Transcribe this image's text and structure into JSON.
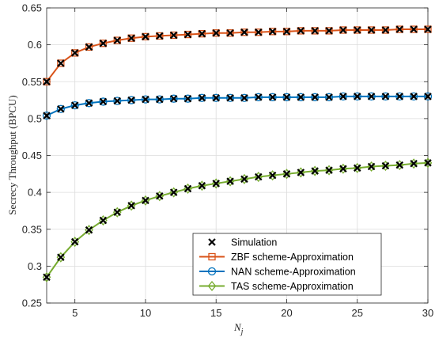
{
  "chart_data": {
    "type": "line",
    "xlabel": "N",
    "xlabel_sub": "j",
    "ylabel": "Secrecy Throughput (BPCU)",
    "xlim": [
      3,
      30
    ],
    "ylim": [
      0.25,
      0.65
    ],
    "xticks": [
      5,
      10,
      15,
      20,
      25,
      30
    ],
    "yticks": [
      0.25,
      0.3,
      0.35,
      0.4,
      0.45,
      0.5,
      0.55,
      0.6,
      0.65
    ],
    "xtick_labels": [
      "5",
      "10",
      "15",
      "20",
      "25",
      "30"
    ],
    "ytick_labels": [
      "0.25",
      "0.3",
      "0.35",
      "0.4",
      "0.45",
      "0.5",
      "0.55",
      "0.6",
      "0.65"
    ],
    "grid": true,
    "legend_position": "bottom-right",
    "x": [
      3,
      4,
      5,
      6,
      7,
      8,
      9,
      10,
      11,
      12,
      13,
      14,
      15,
      16,
      17,
      18,
      19,
      20,
      21,
      22,
      23,
      24,
      25,
      26,
      27,
      28,
      29,
      30
    ],
    "series": [
      {
        "name": "ZBF scheme-Approximation",
        "color": "#D95319",
        "marker": "square",
        "values": [
          0.55,
          0.575,
          0.589,
          0.597,
          0.602,
          0.606,
          0.609,
          0.611,
          0.612,
          0.613,
          0.614,
          0.615,
          0.616,
          0.616,
          0.617,
          0.617,
          0.618,
          0.618,
          0.619,
          0.619,
          0.619,
          0.62,
          0.62,
          0.62,
          0.62,
          0.621,
          0.621,
          0.621
        ]
      },
      {
        "name": "NAN scheme-Approximation",
        "color": "#0072BD",
        "marker": "circle",
        "values": [
          0.504,
          0.513,
          0.518,
          0.521,
          0.523,
          0.524,
          0.525,
          0.526,
          0.526,
          0.527,
          0.527,
          0.528,
          0.528,
          0.528,
          0.528,
          0.529,
          0.529,
          0.529,
          0.529,
          0.529,
          0.529,
          0.53,
          0.53,
          0.53,
          0.53,
          0.53,
          0.53,
          0.53
        ]
      },
      {
        "name": "TAS scheme-Approximation",
        "color": "#77AC30",
        "marker": "diamond",
        "values": [
          0.285,
          0.312,
          0.333,
          0.349,
          0.362,
          0.373,
          0.382,
          0.389,
          0.395,
          0.4,
          0.405,
          0.409,
          0.412,
          0.415,
          0.418,
          0.421,
          0.423,
          0.425,
          0.427,
          0.429,
          0.43,
          0.432,
          0.433,
          0.435,
          0.436,
          0.437,
          0.439,
          0.44
        ]
      }
    ],
    "simulation": {
      "name": "Simulation",
      "color": "#000000",
      "marker": "x"
    }
  }
}
